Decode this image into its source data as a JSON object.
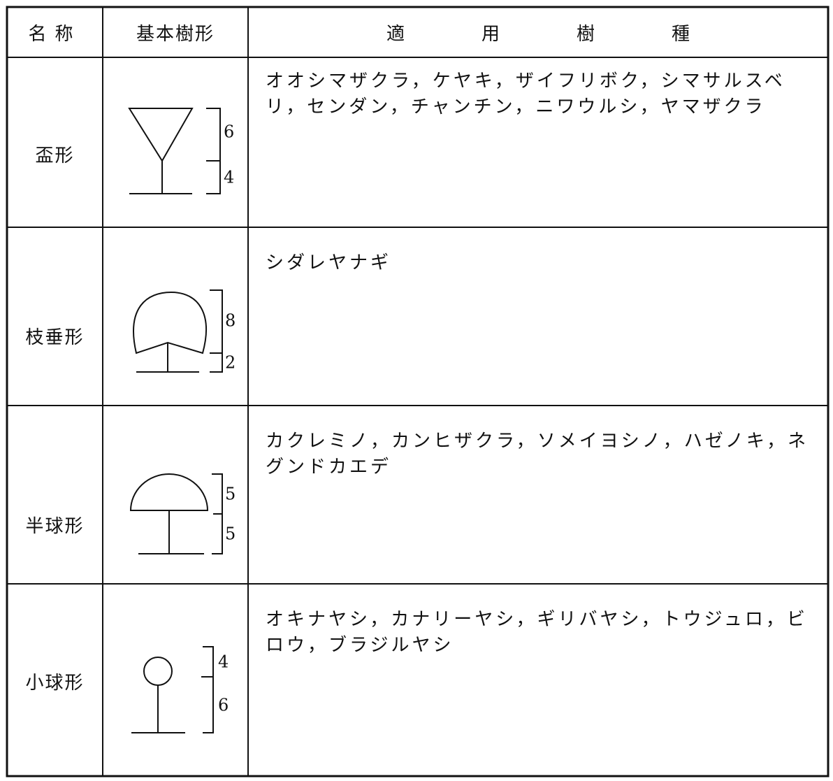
{
  "header": {
    "name": "名称",
    "shape": "基本樹形",
    "species": "適用樹種"
  },
  "rows": [
    {
      "name": "盃形",
      "ratio": [
        6,
        4
      ],
      "species": "オオシマザクラ，ケヤキ，ザイフリボク，シマサルスベリ，センダン，チャンチン，ニワウルシ，ヤマザクラ"
    },
    {
      "name": "枝垂形",
      "ratio": [
        8,
        2
      ],
      "species": "シダレヤナギ"
    },
    {
      "name": "半球形",
      "ratio": [
        5,
        5
      ],
      "species": "カクレミノ，カンヒザクラ，ソメイヨシノ，ハゼノキ，ネグンドカエデ"
    },
    {
      "name": "小球形",
      "ratio": [
        4,
        6
      ],
      "species": "オキナヤシ，カナリーヤシ，ギリバヤシ，トウジュロ，ビロウ，ブラジルヤシ"
    }
  ]
}
